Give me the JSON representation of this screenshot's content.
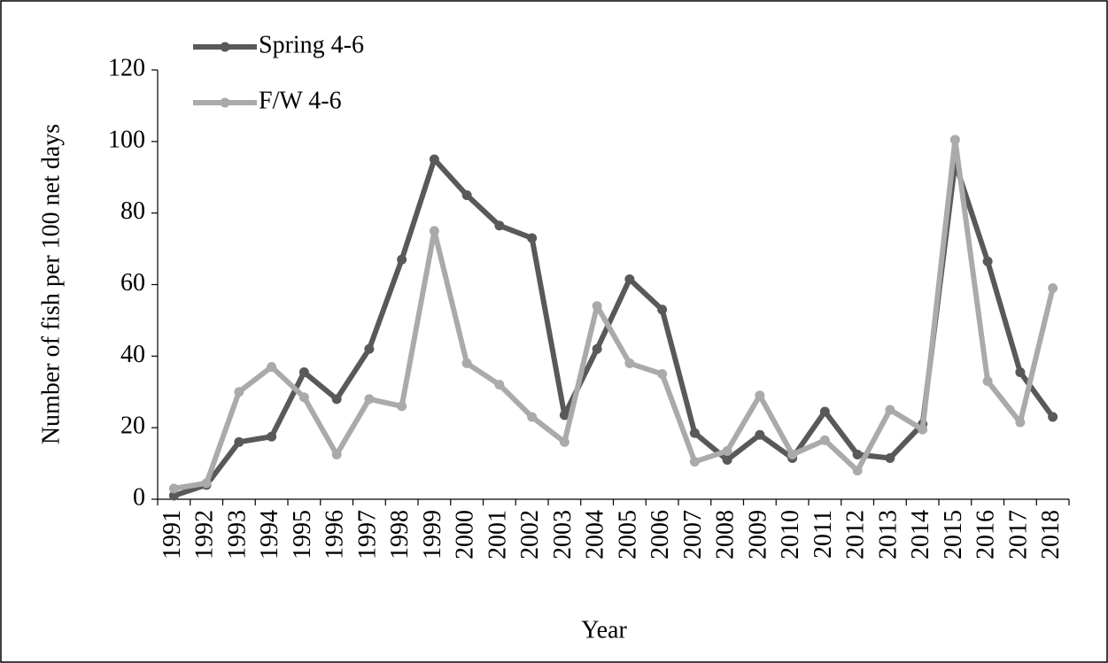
{
  "chart_data": {
    "type": "line",
    "x_label": "Year",
    "y_label": "Number of fish per 100 net days",
    "categories": [
      "1991",
      "1992",
      "1993",
      "1994",
      "1995",
      "1996",
      "1997",
      "1998",
      "1999",
      "2000",
      "2001",
      "2002",
      "2003",
      "2004",
      "2005",
      "2006",
      "2007",
      "2008",
      "2009",
      "2010",
      "2011",
      "2012",
      "2013",
      "2014",
      "2015",
      "2016",
      "2017",
      "2018"
    ],
    "series": [
      {
        "name": "Spring 4-6",
        "color": "#595959",
        "values": [
          1,
          4,
          16,
          17.5,
          35.5,
          28,
          42,
          67,
          95,
          85,
          76.5,
          73,
          23.5,
          42,
          61.5,
          53,
          18.5,
          11,
          18,
          11.5,
          24.5,
          12.5,
          11.5,
          21,
          94,
          66.5,
          35.5,
          23
        ]
      },
      {
        "name": "F/W 4-6",
        "color": "#aaaaaa",
        "values": [
          3,
          4.5,
          30,
          37,
          28.5,
          12.5,
          28,
          26,
          75,
          38,
          32,
          23,
          16,
          54,
          38,
          35,
          10.5,
          13.5,
          29,
          12.5,
          16.5,
          8,
          25,
          19.5,
          100.5,
          33,
          21.5,
          59
        ]
      }
    ],
    "ylim": [
      0,
      120
    ],
    "yticks": [
      0,
      20,
      40,
      60,
      80,
      100,
      120
    ],
    "grid": false,
    "legend": "top-left"
  }
}
